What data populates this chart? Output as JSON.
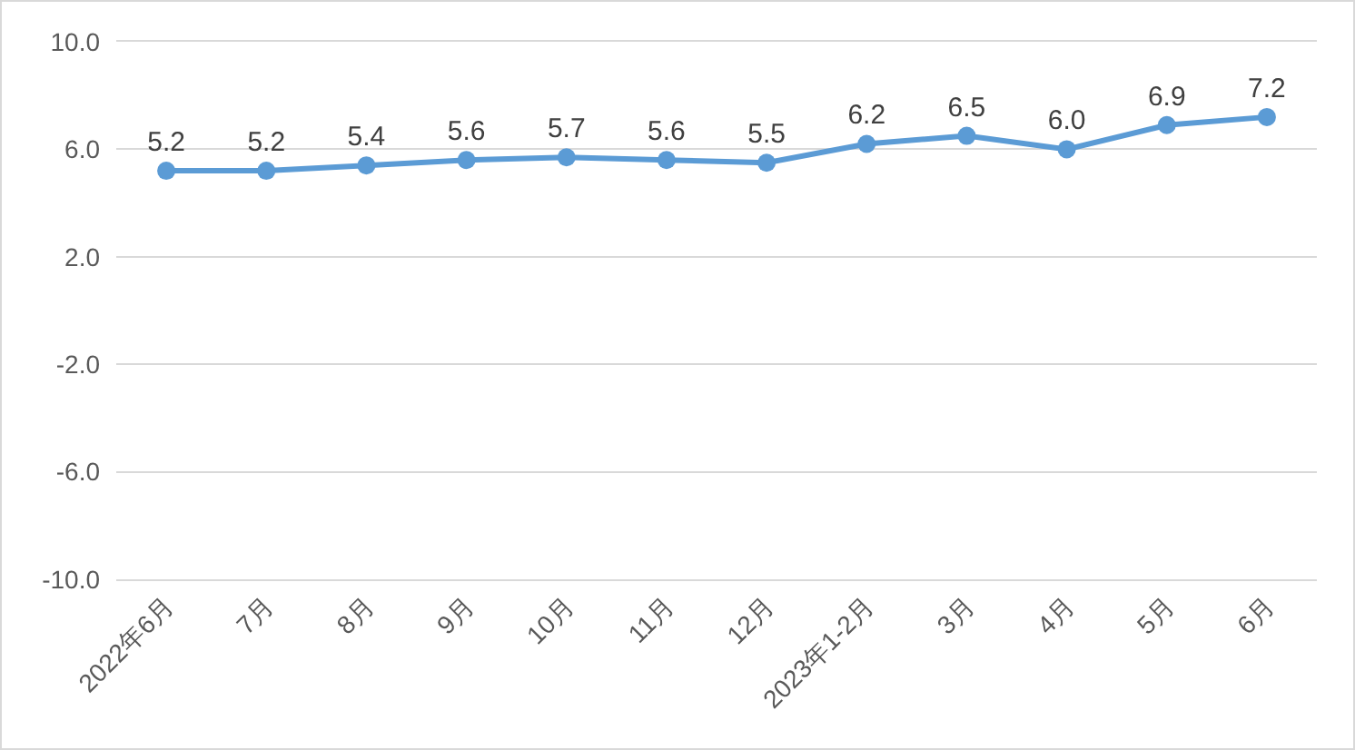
{
  "chart_data": {
    "type": "line",
    "categories": [
      "2022年6月",
      "7月",
      "8月",
      "9月",
      "10月",
      "11月",
      "12月",
      "2023年1-2月",
      "3月",
      "4月",
      "5月",
      "6月"
    ],
    "series": [
      {
        "color": "#5b9bd5",
        "values": [
          5.2,
          5.2,
          5.4,
          5.6,
          5.7,
          5.6,
          5.5,
          6.2,
          6.5,
          6.0,
          6.9,
          7.2
        ],
        "value_labels": [
          "5.2",
          "5.2",
          "5.4",
          "5.6",
          "5.7",
          "5.6",
          "5.5",
          "6.2",
          "6.5",
          "6.0",
          "6.9",
          "7.2"
        ]
      }
    ],
    "ylim": [
      -10,
      10
    ],
    "yticks": [
      {
        "value": -10,
        "label": "-10.0"
      },
      {
        "value": -6,
        "label": "-6.0"
      },
      {
        "value": -2,
        "label": "-2.0"
      },
      {
        "value": 2,
        "label": "2.0"
      },
      {
        "value": 6,
        "label": "6.0"
      },
      {
        "value": 10,
        "label": "10.0"
      }
    ],
    "grid": "y",
    "marker": "circle",
    "line_style": "solid"
  }
}
